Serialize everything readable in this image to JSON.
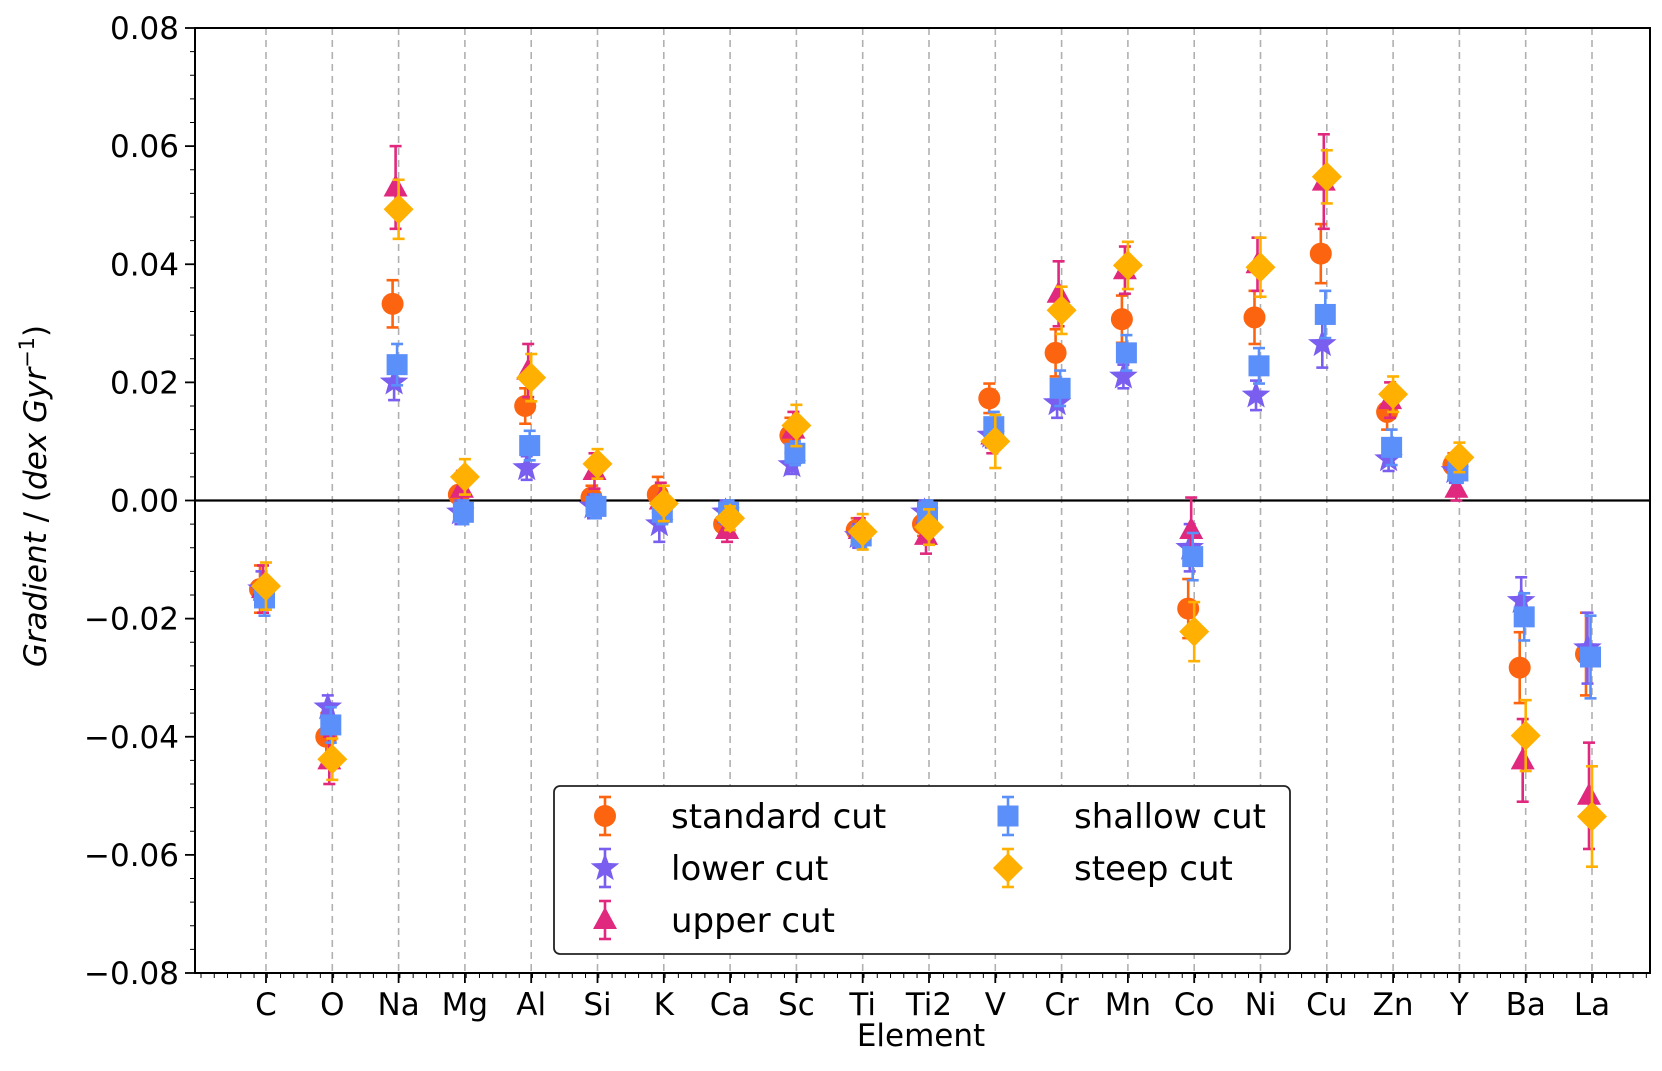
{
  "chart_data": {
    "type": "scatter",
    "title": "",
    "xlabel": "Element",
    "ylabel": "Gradient / (dex Gyr⁻¹)",
    "ylabel_parts": {
      "main": "Gradient",
      "sep": " / (",
      "unit": "dex Gyr",
      "exp": "−1",
      "close": ")"
    },
    "ylim": [
      -0.08,
      0.08
    ],
    "yticks": [
      -0.08,
      -0.06,
      -0.04,
      -0.02,
      0.0,
      0.02,
      0.04,
      0.06,
      0.08
    ],
    "ytick_labels": [
      "−0.08",
      "−0.06",
      "−0.04",
      "−0.02",
      "0.00",
      "0.02",
      "0.04",
      "0.06",
      "0.08"
    ],
    "categories": [
      "C",
      "O",
      "Na",
      "Mg",
      "Al",
      "Si",
      "K",
      "Ca",
      "Sc",
      "Ti",
      "Ti2",
      "V",
      "Cr",
      "Mn",
      "Co",
      "Ni",
      "Cu",
      "Zn",
      "Y",
      "Ba",
      "La"
    ],
    "zero_line": true,
    "vertical_gridlines": "dashed",
    "legend_position": "lower-center",
    "series": [
      {
        "name": "standard cut",
        "marker": "circle",
        "color": "#fc6410",
        "values": [
          -0.015,
          -0.04,
          0.0333,
          0.001,
          0.016,
          0.0005,
          0.001,
          -0.004,
          0.011,
          -0.005,
          -0.004,
          0.0173,
          0.025,
          0.0307,
          -0.0183,
          0.031,
          0.0418,
          0.015,
          0.006,
          -0.0283,
          -0.026
        ],
        "errors": [
          0.004,
          0.004,
          0.004,
          0.003,
          0.003,
          0.002,
          0.003,
          0.002,
          0.003,
          0.002,
          0.002,
          0.0025,
          0.004,
          0.004,
          0.005,
          0.0045,
          0.005,
          0.003,
          0.002,
          0.006,
          0.007
        ]
      },
      {
        "name": "lower cut",
        "marker": "star",
        "color": "#7a5ef0",
        "values": [
          -0.015,
          -0.035,
          0.02,
          -0.002,
          0.0055,
          -0.001,
          -0.004,
          -0.002,
          0.006,
          -0.006,
          -0.002,
          0.011,
          0.0165,
          0.021,
          -0.008,
          0.0178,
          0.0265,
          0.007,
          0.005,
          -0.017,
          -0.025
        ],
        "errors": [
          0.003,
          0.002,
          0.003,
          0.002,
          0.002,
          0.002,
          0.003,
          0.002,
          0.0015,
          0.002,
          0.002,
          0.002,
          0.0025,
          0.002,
          0.004,
          0.0025,
          0.004,
          0.002,
          0.002,
          0.004,
          0.006
        ]
      },
      {
        "name": "upper cut",
        "marker": "triangle",
        "color": "#e0287e",
        "values": [
          -0.015,
          -0.044,
          0.053,
          0.002,
          0.022,
          0.005,
          0.0,
          -0.005,
          0.012,
          -0.005,
          -0.006,
          0.011,
          0.035,
          0.039,
          -0.005,
          0.04,
          0.054,
          0.017,
          0.002,
          -0.044,
          -0.05
        ],
        "errors": [
          0.004,
          0.004,
          0.007,
          0.003,
          0.0045,
          0.003,
          0.003,
          0.002,
          0.003,
          0.002,
          0.003,
          0.003,
          0.0055,
          0.004,
          0.0055,
          0.0045,
          0.008,
          0.003,
          0.002,
          0.007,
          0.009
        ]
      },
      {
        "name": "shallow cut",
        "marker": "square",
        "color": "#5b8ff9",
        "values": [
          -0.0165,
          -0.038,
          0.023,
          -0.002,
          0.0093,
          -0.001,
          -0.002,
          -0.002,
          0.008,
          -0.006,
          -0.002,
          0.0125,
          0.019,
          0.025,
          -0.0095,
          0.0228,
          0.0315,
          0.009,
          0.005,
          -0.0197,
          -0.0265
        ],
        "errors": [
          0.003,
          0.003,
          0.0035,
          0.002,
          0.0025,
          0.002,
          0.002,
          0.002,
          0.002,
          0.002,
          0.002,
          0.0025,
          0.003,
          0.003,
          0.004,
          0.003,
          0.004,
          0.003,
          0.002,
          0.004,
          0.007
        ]
      },
      {
        "name": "steep cut",
        "marker": "diamond",
        "color": "#ffb000",
        "values": [
          -0.0145,
          -0.0438,
          0.0493,
          0.004,
          0.0208,
          0.0062,
          -0.0005,
          -0.003,
          0.0127,
          -0.0053,
          -0.0045,
          0.01,
          0.0322,
          0.0398,
          -0.0222,
          0.0395,
          0.0548,
          0.018,
          0.0073,
          -0.0398,
          -0.0535
        ],
        "errors": [
          0.004,
          0.0035,
          0.005,
          0.003,
          0.004,
          0.0025,
          0.003,
          0.002,
          0.0035,
          0.003,
          0.003,
          0.0045,
          0.004,
          0.004,
          0.005,
          0.005,
          0.0045,
          0.003,
          0.0025,
          0.006,
          0.0085
        ]
      }
    ]
  }
}
